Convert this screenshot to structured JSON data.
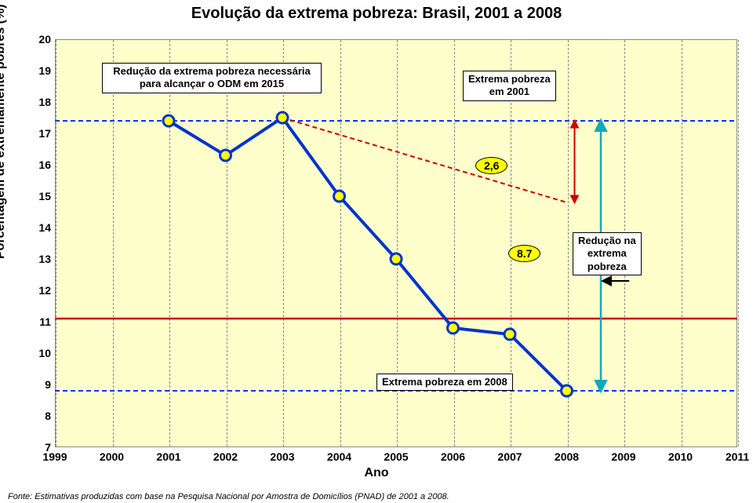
{
  "title": "Evolução da extrema pobreza: Brasil, 2001 a 2008",
  "ylabel": "Porcentagem de extremamente pobres (%)",
  "xlabel": "Ano",
  "footnote": "Fonte: Estimativas produzidas com base na Pesquisa Nacional por Amostra de Domicílios (PNAD) de 2001 a 2008.",
  "chart": {
    "type": "line",
    "plot_bg": "#ffffcc",
    "page_bg": "#ffffff",
    "grid_color": "#888888",
    "xlim": [
      1999,
      2011
    ],
    "ylim": [
      7,
      20
    ],
    "xticks": [
      1999,
      2000,
      2001,
      2002,
      2003,
      2004,
      2005,
      2006,
      2007,
      2008,
      2009,
      2010,
      2011
    ],
    "yticks": [
      7,
      8,
      9,
      10,
      11,
      12,
      13,
      14,
      15,
      16,
      17,
      18,
      19,
      20
    ],
    "series": {
      "x": [
        2001,
        2002,
        2003,
        2004,
        2005,
        2006,
        2007,
        2008
      ],
      "y": [
        17.4,
        16.3,
        17.5,
        15.0,
        13.0,
        10.8,
        10.6,
        8.8
      ],
      "line_color": "#0033cc",
      "line_width": 4,
      "marker_fill": "#ffff00",
      "marker_stroke": "#0033cc",
      "marker_r": 7
    },
    "hline_blue": {
      "y": 17.4,
      "color": "#0033ff",
      "dash": "6,4",
      "width": 2
    },
    "hline_red_upper": {
      "x_from": 2003,
      "y_from": 17.5,
      "x_to": 2008,
      "y_to": 14.8,
      "color": "#cc0000",
      "dash": "6,4",
      "width": 2
    },
    "hline_red_target": {
      "y": 11.1,
      "color": "#cc0000",
      "width": 2.5
    },
    "hline_blue_2008": {
      "y": 8.8,
      "color": "#0033ff",
      "dash": "6,4",
      "width": 2
    }
  },
  "annotations": {
    "box_reducao_odm": "Redução da extrema pobreza necessária\npara alcançar o ODM em 2015",
    "box_extrema_2001": "Extrema pobreza\nem 2001",
    "box_reducao_extrema": "Redução na\nextrema\npobreza",
    "box_extrema_2008": "Extrema pobreza em 2008",
    "badge_26": "2,6",
    "badge_87": "8.7"
  },
  "styling": {
    "title_fontsize": 20,
    "ylabel_fontsize": 16,
    "xlabel_fontsize": 16,
    "tick_fontsize": 14,
    "annotation_fontsize": 13,
    "badge_bg": "#ffff00",
    "box_bg": "#ffffff",
    "arrow_color_red": "#cc0000",
    "arrow_color_teal": "#11aabb"
  }
}
